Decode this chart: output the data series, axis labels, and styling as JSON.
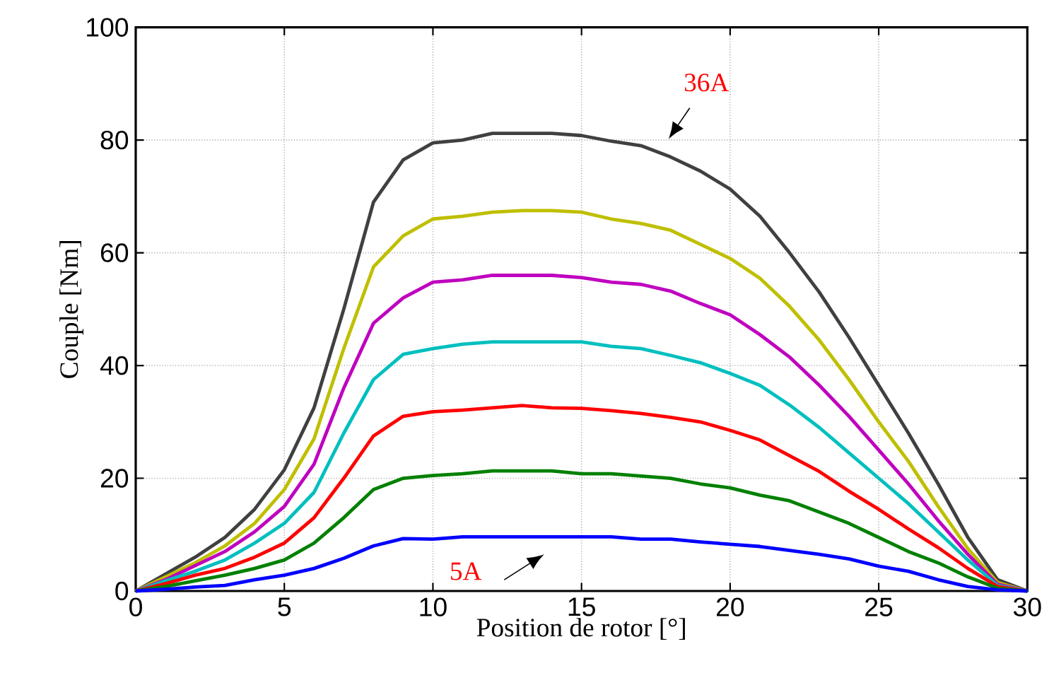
{
  "chart_data": {
    "type": "line",
    "xlabel": "Position de rotor [°]",
    "ylabel": "Couple [Nm]",
    "x": [
      0,
      1,
      2,
      3,
      4,
      5,
      6,
      7,
      8,
      9,
      10,
      11,
      12,
      13,
      14,
      15,
      16,
      17,
      18,
      19,
      20,
      21,
      22,
      23,
      24,
      25,
      26,
      27,
      28,
      29,
      30
    ],
    "xlim": [
      0,
      30
    ],
    "xticks": [
      0,
      5,
      10,
      15,
      20,
      25,
      30
    ],
    "ylim": [
      0,
      100
    ],
    "yticks": [
      0,
      20,
      40,
      60,
      80,
      100
    ],
    "grid": true,
    "marker": "none",
    "line_style": "solid",
    "series": [
      {
        "color": "#404040",
        "values": [
          0,
          3,
          6,
          9.5,
          14.5,
          21.5,
          32.5,
          50,
          69,
          76.5,
          79.5,
          80,
          81.2,
          81.2,
          81.2,
          80.8,
          79.8,
          79,
          77,
          74.5,
          71.3,
          66.5,
          60,
          53,
          45,
          36.5,
          28,
          19,
          9.5,
          2,
          0
        ]
      },
      {
        "color": "#bfbf00",
        "values": [
          0,
          2.5,
          5,
          8,
          12,
          18,
          27,
          43,
          57.5,
          63,
          66,
          66.5,
          67.2,
          67.5,
          67.5,
          67.2,
          66,
          65.2,
          64,
          61.5,
          59,
          55.5,
          50.5,
          44.5,
          37.5,
          30,
          23,
          15,
          7.5,
          1.5,
          0
        ]
      },
      {
        "color": "#bf00bf",
        "values": [
          0,
          2,
          4.5,
          7,
          10.5,
          15,
          22.5,
          36,
          47.5,
          52,
          54.8,
          55.2,
          56,
          56,
          56,
          55.6,
          54.8,
          54.4,
          53.2,
          51,
          49,
          45.5,
          41.5,
          36.5,
          31,
          25,
          19,
          12.5,
          6.5,
          1.2,
          0
        ]
      },
      {
        "color": "#00bfbf",
        "values": [
          0,
          1.8,
          3.5,
          5.5,
          8.5,
          12,
          17.5,
          28,
          37.5,
          42,
          43,
          43.8,
          44.2,
          44.2,
          44.2,
          44.2,
          43.4,
          43,
          41.8,
          40.5,
          38.6,
          36.5,
          33,
          29,
          24.5,
          20,
          15.5,
          10.5,
          5.5,
          1,
          0
        ]
      },
      {
        "color": "#ff0000",
        "values": [
          0,
          1.3,
          2.8,
          4,
          6,
          8.5,
          13,
          20,
          27.5,
          31,
          31.8,
          32.1,
          32.5,
          32.9,
          32.5,
          32.4,
          32,
          31.5,
          30.8,
          30,
          28.5,
          26.8,
          24,
          21.2,
          17.7,
          14.5,
          11,
          7.7,
          4,
          0.8,
          0
        ]
      },
      {
        "color": "#008000",
        "values": [
          0,
          0.8,
          1.8,
          2.8,
          4,
          5.5,
          8.5,
          13,
          18,
          20,
          20.5,
          20.8,
          21.3,
          21.3,
          21.3,
          20.8,
          20.8,
          20.4,
          20,
          19,
          18.3,
          17,
          16,
          14,
          12,
          9.5,
          7,
          5,
          2.5,
          0.5,
          0
        ]
      },
      {
        "color": "#0000ff",
        "values": [
          0,
          0.3,
          0.7,
          1,
          2,
          2.8,
          4,
          5.8,
          8,
          9.3,
          9.2,
          9.6,
          9.6,
          9.6,
          9.6,
          9.6,
          9.6,
          9.2,
          9.2,
          8.7,
          8.3,
          7.9,
          7.2,
          6.5,
          5.7,
          4.4,
          3.5,
          2,
          0.8,
          0.2,
          0
        ]
      }
    ],
    "annotations": [
      "36A",
      "5A"
    ]
  }
}
